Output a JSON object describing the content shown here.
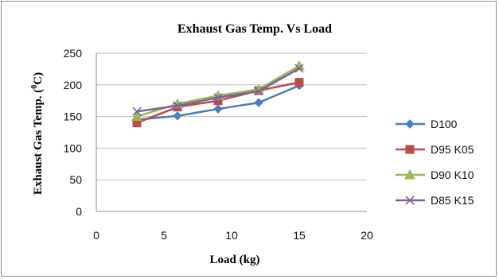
{
  "chart_data": {
    "type": "line",
    "title": "Exhaust Gas Temp. Vs Load",
    "xlabel": "Load (kg)",
    "ylabel_main": "Exhaust Gas Temp. (",
    "ylabel_sup": "0",
    "ylabel_tail": "C)",
    "xlim": [
      0,
      20
    ],
    "ylim": [
      0,
      250
    ],
    "xticks": [
      0,
      5,
      10,
      15,
      20
    ],
    "yticks": [
      0,
      50,
      100,
      150,
      200,
      250
    ],
    "grid": "horizontal",
    "legend_position": "right",
    "series": [
      {
        "name": "D100",
        "color": "#4a7ebb",
        "marker": "diamond",
        "x": [
          3,
          6,
          9,
          12,
          15
        ],
        "values": [
          145,
          151,
          162,
          172,
          199
        ]
      },
      {
        "name": "D95 K05",
        "color": "#be4b48",
        "marker": "square",
        "x": [
          3,
          6,
          9,
          12,
          15
        ],
        "values": [
          140,
          165,
          175,
          191,
          204
        ]
      },
      {
        "name": "D90 K10",
        "color": "#98b954",
        "marker": "triangle",
        "x": [
          3,
          6,
          9,
          12,
          15
        ],
        "values": [
          150,
          170,
          183,
          193,
          230
        ]
      },
      {
        "name": "D85 K15",
        "color": "#7d60a0",
        "marker": "x",
        "x": [
          3,
          6,
          9,
          12,
          15
        ],
        "values": [
          158,
          167,
          180,
          190,
          226
        ]
      }
    ]
  }
}
